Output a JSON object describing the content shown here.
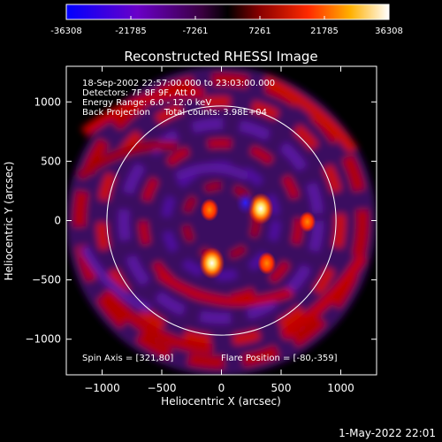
{
  "colorbar": {
    "ticks": [
      "-36308",
      "-21785",
      "-7261",
      "7261",
      "21785",
      "36308"
    ],
    "min": -36308,
    "max": 36308,
    "colors": [
      "#0000ff",
      "#6a00c8",
      "#3a0040",
      "#000000",
      "#8a0000",
      "#ff2a00",
      "#ffb000",
      "#ffffff"
    ]
  },
  "chart_data": {
    "type": "heatmap",
    "title": "Reconstructed RHESSI Image",
    "xlabel": "Heliocentric X (arcsec)",
    "ylabel": "Heliocentric Y (arcsec)",
    "xlim": [
      -1300,
      1300
    ],
    "ylim": [
      -1300,
      1300
    ],
    "xticks": [
      -1000,
      -500,
      0,
      500,
      1000
    ],
    "yticks": [
      -1000,
      -500,
      0,
      500,
      1000
    ],
    "xtick_labels": [
      "−1000",
      "−500",
      "0",
      "500",
      "1000"
    ],
    "ytick_labels": [
      "−1000",
      "−500",
      "0",
      "500",
      "1000"
    ],
    "solar_limb_radius": 960,
    "info": [
      "18-Sep-2002 22:57:00.000 to 23:03:00.000",
      "Detectors: 7F 8F 9F, Att 0",
      "Energy Range: 6.0 - 12.0 keV",
      "Back Projection     Total counts: 3.98E+04"
    ],
    "spin_axis": "Spin Axis = [321,80]",
    "flare_position": "Flare Position = [-80,-359]",
    "sources": [
      {
        "x": 330,
        "y": 100,
        "intensity": 36308
      },
      {
        "x": -80,
        "y": -359,
        "intensity": 36308
      },
      {
        "x": -100,
        "y": 90,
        "intensity": 18000
      },
      {
        "x": 380,
        "y": -360,
        "intensity": 18000
      },
      {
        "x": 720,
        "y": -10,
        "intensity": 14000
      },
      {
        "x": 200,
        "y": 150,
        "intensity": -20000
      }
    ]
  },
  "footer": {
    "timestamp": "1-May-2022 22:01"
  }
}
